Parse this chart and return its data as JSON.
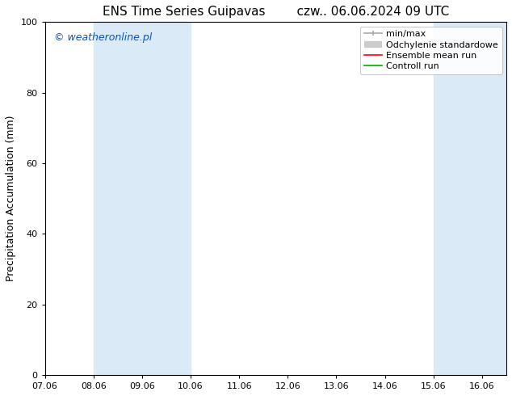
{
  "title_left": "ENS Time Series Guipavas",
  "title_right": "czw.. 06.06.2024 09 UTC",
  "ylabel": "Precipitation Accumulation (mm)",
  "ylim": [
    0,
    100
  ],
  "yticks": [
    0,
    20,
    40,
    60,
    80,
    100
  ],
  "watermark": "© weatheronline.pl",
  "watermark_color": "#0055cc",
  "background_color": "#ffffff",
  "plot_bg_color": "#ffffff",
  "band_color": "#daeaf7",
  "band_ranges": [
    [
      8,
      10
    ],
    [
      15,
      16.5
    ]
  ],
  "x_tick_labels": [
    "07.06",
    "08.06",
    "09.06",
    "10.06",
    "11.06",
    "12.06",
    "13.06",
    "14.06",
    "15.06",
    "16.06"
  ],
  "x_num_ticks": 10,
  "x_min": 7,
  "x_max": 16.5,
  "legend_labels": [
    "min/max",
    "Odchylenie standardowe",
    "Ensemble mean run",
    "Controll run"
  ],
  "legend_colors": [
    "#aaaaaa",
    "#cccccc",
    "#ff0000",
    "#00aa00"
  ],
  "title_fontsize": 11,
  "tick_fontsize": 8,
  "label_fontsize": 9,
  "watermark_fontsize": 9,
  "legend_fontsize": 8
}
